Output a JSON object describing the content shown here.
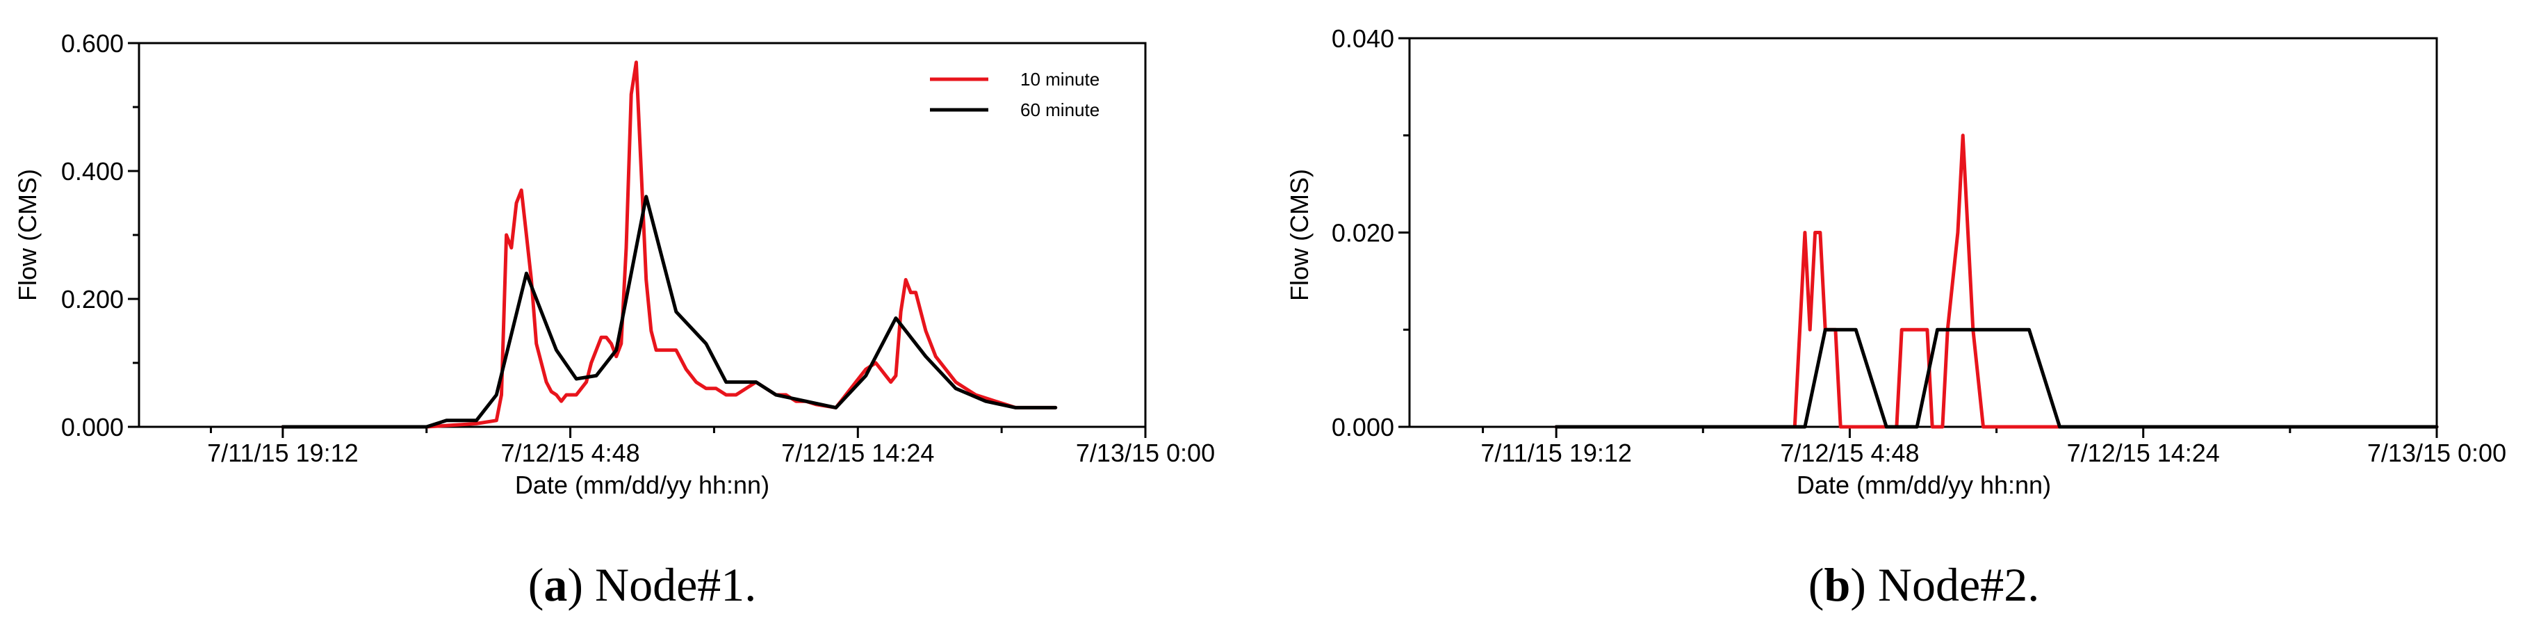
{
  "chart_data": [
    {
      "type": "line",
      "caption_letter": "a",
      "caption_text": " Node#1.",
      "xlabel": "Date (mm/dd/yy hh:nn)",
      "ylabel": "Flow (CMS)",
      "xlim": [
        "7/11/15 14:24",
        "7/13/15 0:00"
      ],
      "ylim": [
        0,
        0.6
      ],
      "x_ticks": [
        "7/11/15 19:12",
        "7/12/15 4:48",
        "7/12/15 14:24",
        "7/13/15 0:00"
      ],
      "y_ticks": [
        "0.000",
        "0.200",
        "0.400",
        "0.600"
      ],
      "grid": false,
      "legend_position": "top-right",
      "series": [
        {
          "name": "10 minute",
          "color": "#e8141c",
          "points": [
            [
              "7/11/15 19:12",
              0
            ],
            [
              "7/12/15 0:00",
              0
            ],
            [
              "7/12/15 1:40",
              0.005
            ],
            [
              "7/12/15 2:20",
              0.01
            ],
            [
              "7/12/15 2:30",
              0.05
            ],
            [
              "7/12/15 2:40",
              0.3
            ],
            [
              "7/12/15 2:50",
              0.28
            ],
            [
              "7/12/15 3:00",
              0.35
            ],
            [
              "7/12/15 3:10",
              0.37
            ],
            [
              "7/12/15 3:20",
              0.3
            ],
            [
              "7/12/15 3:30",
              0.23
            ],
            [
              "7/12/15 3:40",
              0.13
            ],
            [
              "7/12/15 3:50",
              0.1
            ],
            [
              "7/12/15 4:00",
              0.07
            ],
            [
              "7/12/15 4:10",
              0.055
            ],
            [
              "7/12/15 4:20",
              0.05
            ],
            [
              "7/12/15 4:30",
              0.04
            ],
            [
              "7/12/15 4:40",
              0.05
            ],
            [
              "7/12/15 5:00",
              0.05
            ],
            [
              "7/12/15 5:10",
              0.06
            ],
            [
              "7/12/15 5:20",
              0.07
            ],
            [
              "7/12/15 5:30",
              0.1
            ],
            [
              "7/12/15 5:40",
              0.12
            ],
            [
              "7/12/15 5:50",
              0.14
            ],
            [
              "7/12/15 6:00",
              0.14
            ],
            [
              "7/12/15 6:10",
              0.13
            ],
            [
              "7/12/15 6:20",
              0.11
            ],
            [
              "7/12/15 6:30",
              0.13
            ],
            [
              "7/12/15 6:40",
              0.28
            ],
            [
              "7/12/15 6:50",
              0.52
            ],
            [
              "7/12/15 7:00",
              0.57
            ],
            [
              "7/12/15 7:10",
              0.4
            ],
            [
              "7/12/15 7:20",
              0.23
            ],
            [
              "7/12/15 7:30",
              0.15
            ],
            [
              "7/12/15 7:40",
              0.12
            ],
            [
              "7/12/15 8:00",
              0.12
            ],
            [
              "7/12/15 8:20",
              0.12
            ],
            [
              "7/12/15 8:40",
              0.09
            ],
            [
              "7/12/15 9:00",
              0.07
            ],
            [
              "7/12/15 9:20",
              0.06
            ],
            [
              "7/12/15 9:40",
              0.06
            ],
            [
              "7/12/15 10:00",
              0.05
            ],
            [
              "7/12/15 10:20",
              0.05
            ],
            [
              "7/12/15 10:40",
              0.06
            ],
            [
              "7/12/15 11:00",
              0.07
            ],
            [
              "7/12/15 11:20",
              0.06
            ],
            [
              "7/12/15 11:40",
              0.05
            ],
            [
              "7/12/15 12:00",
              0.05
            ],
            [
              "7/12/15 12:20",
              0.04
            ],
            [
              "7/12/15 12:40",
              0.04
            ],
            [
              "7/12/15 13:00",
              0.035
            ],
            [
              "7/12/15 13:40",
              0.03
            ],
            [
              "7/12/15 14:00",
              0.05
            ],
            [
              "7/12/15 14:20",
              0.07
            ],
            [
              "7/12/15 14:40",
              0.09
            ],
            [
              "7/12/15 15:00",
              0.1
            ],
            [
              "7/12/15 15:20",
              0.08
            ],
            [
              "7/12/15 15:30",
              0.07
            ],
            [
              "7/12/15 15:40",
              0.08
            ],
            [
              "7/12/15 15:50",
              0.18
            ],
            [
              "7/12/15 16:00",
              0.23
            ],
            [
              "7/12/15 16:10",
              0.21
            ],
            [
              "7/12/15 16:20",
              0.21
            ],
            [
              "7/12/15 16:40",
              0.15
            ],
            [
              "7/12/15 17:00",
              0.11
            ],
            [
              "7/12/15 17:20",
              0.09
            ],
            [
              "7/12/15 17:40",
              0.07
            ],
            [
              "7/12/15 18:00",
              0.06
            ],
            [
              "7/12/15 18:20",
              0.05
            ],
            [
              "7/12/15 18:40",
              0.045
            ],
            [
              "7/12/15 19:00",
              0.04
            ],
            [
              "7/12/15 19:20",
              0.035
            ],
            [
              "7/12/15 19:40",
              0.03
            ],
            [
              "7/12/15 20:20",
              0.03
            ],
            [
              "7/12/15 21:00",
              0.03
            ]
          ]
        },
        {
          "name": "60 minute",
          "color": "#000000",
          "points": [
            [
              "7/11/15 19:12",
              0
            ],
            [
              "7/12/15 0:00",
              0
            ],
            [
              "7/12/15 0:40",
              0.01
            ],
            [
              "7/12/15 1:40",
              0.01
            ],
            [
              "7/12/15 2:20",
              0.05
            ],
            [
              "7/12/15 3:20",
              0.24
            ],
            [
              "7/12/15 4:20",
              0.12
            ],
            [
              "7/12/15 5:00",
              0.075
            ],
            [
              "7/12/15 5:40",
              0.08
            ],
            [
              "7/12/15 6:20",
              0.12
            ],
            [
              "7/12/15 7:20",
              0.36
            ],
            [
              "7/12/15 8:20",
              0.18
            ],
            [
              "7/12/15 9:20",
              0.13
            ],
            [
              "7/12/15 10:00",
              0.07
            ],
            [
              "7/12/15 11:00",
              0.07
            ],
            [
              "7/12/15 11:40",
              0.05
            ],
            [
              "7/12/15 13:40",
              0.03
            ],
            [
              "7/12/15 14:40",
              0.08
            ],
            [
              "7/12/15 15:40",
              0.17
            ],
            [
              "7/12/15 16:40",
              0.11
            ],
            [
              "7/12/15 17:40",
              0.06
            ],
            [
              "7/12/15 18:40",
              0.04
            ],
            [
              "7/12/15 19:40",
              0.03
            ],
            [
              "7/12/15 21:00",
              0.03
            ]
          ]
        }
      ]
    },
    {
      "type": "line",
      "caption_letter": "b",
      "caption_text": " Node#2.",
      "xlabel": "Date (mm/dd/yy hh:nn)",
      "ylabel": "Flow (CMS)",
      "xlim": [
        "7/11/15 14:24",
        "7/13/15 0:00"
      ],
      "ylim": [
        0,
        0.04
      ],
      "x_ticks": [
        "7/11/15 19:12",
        "7/12/15 4:48",
        "7/12/15 14:24",
        "7/13/15 0:00"
      ],
      "y_ticks": [
        "0.000",
        "0.020",
        "0.040"
      ],
      "grid": false,
      "series": [
        {
          "color": "#e8141c",
          "points": [
            [
              "7/11/15 19:12",
              0
            ],
            [
              "7/12/15 3:00",
              0
            ],
            [
              "7/12/15 3:20",
              0.02
            ],
            [
              "7/12/15 3:30",
              0.01
            ],
            [
              "7/12/15 3:40",
              0.02
            ],
            [
              "7/12/15 3:50",
              0.02
            ],
            [
              "7/12/15 4:00",
              0.01
            ],
            [
              "7/12/15 4:20",
              0.01
            ],
            [
              "7/12/15 4:30",
              0
            ],
            [
              "7/12/15 6:20",
              0
            ],
            [
              "7/12/15 6:30",
              0.01
            ],
            [
              "7/12/15 7:20",
              0.01
            ],
            [
              "7/12/15 7:30",
              0
            ],
            [
              "7/12/15 7:50",
              0
            ],
            [
              "7/12/15 8:00",
              0.01
            ],
            [
              "7/12/15 8:20",
              0.02
            ],
            [
              "7/12/15 8:30",
              0.03
            ],
            [
              "7/12/15 8:40",
              0.02
            ],
            [
              "7/12/15 8:50",
              0.01
            ],
            [
              "7/12/15 9:10",
              0
            ],
            [
              "7/13/15 0:00",
              0
            ]
          ]
        },
        {
          "color": "#000000",
          "points": [
            [
              "7/11/15 19:12",
              0
            ],
            [
              "7/12/15 3:20",
              0
            ],
            [
              "7/12/15 4:00",
              0.01
            ],
            [
              "7/12/15 5:00",
              0.01
            ],
            [
              "7/12/15 6:00",
              0
            ],
            [
              "7/12/15 7:00",
              0
            ],
            [
              "7/12/15 7:40",
              0.01
            ],
            [
              "7/12/15 10:40",
              0.01
            ],
            [
              "7/12/15 11:40",
              0
            ],
            [
              "7/13/15 0:00",
              0
            ]
          ]
        }
      ]
    }
  ]
}
